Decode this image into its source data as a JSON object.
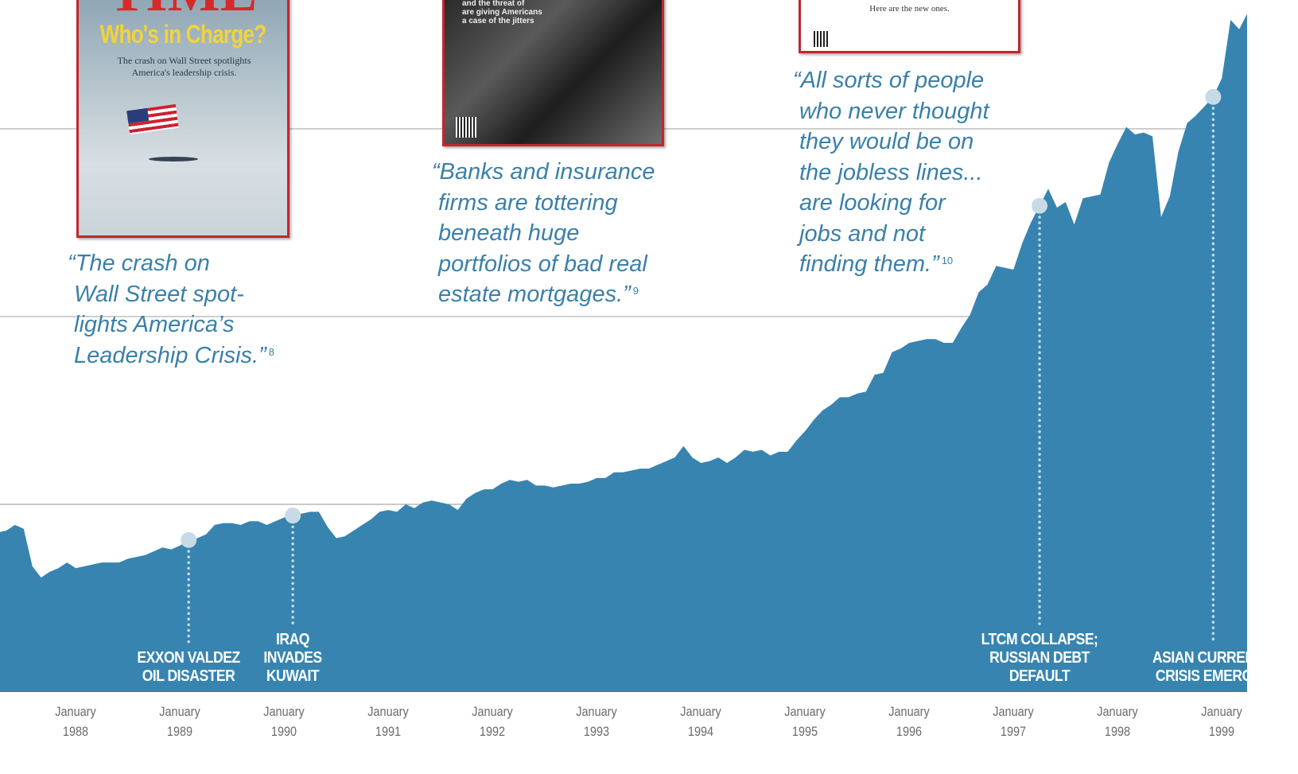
{
  "chart_data": {
    "type": "area",
    "categories": [
      null,
      null,
      null,
      null,
      null,
      null,
      null,
      null,
      null,
      "January 1988",
      null,
      null,
      null,
      null,
      null,
      null,
      null,
      null,
      null,
      null,
      null,
      "January 1989",
      null,
      null,
      null,
      null,
      null,
      null,
      null,
      null,
      null,
      null,
      null,
      "January 1990",
      null,
      null,
      null,
      null,
      null,
      null,
      null,
      null,
      null,
      null,
      null,
      "January 1991",
      null,
      null,
      null,
      null,
      null,
      null,
      null,
      null,
      null,
      null,
      null,
      "January 1992",
      null,
      null,
      null,
      null,
      null,
      null,
      null,
      null,
      null,
      null,
      null,
      "January 1993",
      null,
      null,
      null,
      null,
      null,
      null,
      null,
      null,
      null,
      null,
      null,
      "January 1994",
      null,
      null,
      null,
      null,
      null,
      null,
      null,
      null,
      null,
      null,
      null,
      "January 1995",
      null,
      null,
      null,
      null,
      null,
      null,
      null,
      null,
      null,
      null,
      null,
      "January 1996",
      null,
      null,
      null,
      null,
      null,
      null,
      null,
      null,
      null,
      null,
      null,
      "January 1997",
      null,
      null,
      null,
      null,
      null,
      null,
      null,
      null,
      null,
      null,
      null,
      "January 1998",
      null,
      null,
      null,
      null,
      null,
      null,
      null,
      null,
      null,
      null,
      null,
      "January 1999",
      null,
      null,
      null
    ],
    "series": [
      {
        "color": "#3784b0",
        "values": [
          85,
          86,
          89,
          87,
          67,
          61,
          64,
          66,
          69,
          66,
          67,
          68,
          69,
          69,
          69,
          71,
          72,
          73,
          75,
          77,
          76,
          78,
          81,
          82,
          84,
          89,
          90,
          90,
          89,
          91,
          91,
          89,
          91,
          93,
          94,
          95,
          96,
          96,
          88,
          82,
          83,
          86,
          89,
          92,
          96,
          97,
          96,
          100,
          98,
          101,
          102,
          101,
          100,
          97,
          103,
          106,
          108,
          108,
          111,
          113,
          112,
          113,
          110,
          110,
          109,
          110,
          111,
          111,
          112,
          114,
          114,
          117,
          117,
          118,
          119,
          119,
          121,
          123,
          125,
          131,
          125,
          122,
          123,
          125,
          122,
          125,
          129,
          128,
          129,
          126,
          128,
          128,
          134,
          139,
          145,
          150,
          153,
          157,
          157,
          159,
          160,
          169,
          170,
          181,
          183,
          186,
          187,
          188,
          188,
          186,
          186,
          194,
          201,
          213,
          217,
          227,
          226,
          225,
          239,
          250,
          259,
          268,
          258,
          261,
          249,
          263,
          264,
          265,
          282,
          292,
          301,
          297,
          298,
          296,
          253,
          264,
          288,
          303,
          307,
          312,
          317,
          327,
          358,
          353,
          362
        ]
      }
    ],
    "ylim": [
      0,
      368.6
    ],
    "yticks": [
      100,
      200,
      300
    ],
    "grid": true,
    "grid_color": "#a9a9a9",
    "marker_color": "#c6dbe7",
    "events": [
      {
        "index": 22,
        "lines": [
          "EXXON VALDEZ",
          "OIL DISASTER"
        ]
      },
      {
        "index": 34,
        "lines": [
          "IRAQ",
          "INVADES",
          "KUWAIT"
        ]
      },
      {
        "index": 120,
        "lines": [
          "LTCM COLLAPSE;",
          "RUSSIAN DEBT",
          "DEFAULT"
        ]
      },
      {
        "index": 140,
        "lines": [
          "ASIAN CURRENCY",
          "CRISIS EMERGES"
        ]
      }
    ]
  },
  "quotes": [
    {
      "lines": [
        "“The crash on",
        "Wall Street spot-",
        "lights America’s",
        "Leadership Crisis.”"
      ],
      "note": "8"
    },
    {
      "lines": [
        "“Banks and insurance",
        "firms are tottering",
        "beneath huge",
        "portfolios of bad real",
        "estate mortgages.”"
      ],
      "note": "9"
    },
    {
      "lines": [
        "“All sorts of people",
        "who never thought",
        "they would be on",
        "the jobless lines...",
        "are looking for",
        "jobs and not",
        "finding them.”"
      ],
      "note": "10"
    }
  ],
  "covers": [
    {
      "masthead": "TIME",
      "headline": "Who's in Charge?",
      "blurb": "The crash on Wall Street spotlights America's leadership crisis."
    },
    {
      "blurb": [
        "and the threat of",
        "are giving Americans",
        "a case of the jitters"
      ]
    },
    {
      "blurb": "Here are the new ones."
    }
  ]
}
